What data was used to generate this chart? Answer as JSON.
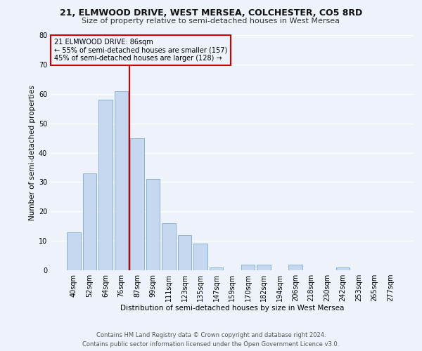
{
  "title1": "21, ELMWOOD DRIVE, WEST MERSEA, COLCHESTER, CO5 8RD",
  "title2": "Size of property relative to semi-detached houses in West Mersea",
  "xlabel": "Distribution of semi-detached houses by size in West Mersea",
  "ylabel": "Number of semi-detached properties",
  "footnote1": "Contains HM Land Registry data © Crown copyright and database right 2024.",
  "footnote2": "Contains public sector information licensed under the Open Government Licence v3.0.",
  "bar_labels": [
    "40sqm",
    "52sqm",
    "64sqm",
    "76sqm",
    "87sqm",
    "99sqm",
    "111sqm",
    "123sqm",
    "135sqm",
    "147sqm",
    "159sqm",
    "170sqm",
    "182sqm",
    "194sqm",
    "206sqm",
    "218sqm",
    "230sqm",
    "242sqm",
    "253sqm",
    "265sqm",
    "277sqm"
  ],
  "bar_values": [
    13,
    33,
    58,
    61,
    45,
    31,
    16,
    12,
    9,
    1,
    0,
    2,
    2,
    0,
    2,
    0,
    0,
    1,
    0,
    0,
    0
  ],
  "bar_color": "#c5d8f0",
  "bar_edge_color": "#7aaad0",
  "vline_x_pos": 4.5,
  "annotation_title": "21 ELMWOOD DRIVE: 86sqm",
  "annotation_line1": "← 55% of semi-detached houses are smaller (157)",
  "annotation_line2": "45% of semi-detached houses are larger (128) →",
  "vline_color": "#cc0000",
  "box_edge_color": "#cc0000",
  "ylim": [
    0,
    80
  ],
  "yticks": [
    0,
    10,
    20,
    30,
    40,
    50,
    60,
    70,
    80
  ],
  "bg_color": "#eef2fa",
  "grid_color": "#ffffff",
  "title1_fontsize": 9.0,
  "title2_fontsize": 8.0,
  "ylabel_fontsize": 7.5,
  "xlabel_fontsize": 7.5,
  "tick_fontsize": 7.0,
  "annot_fontsize": 7.0,
  "footnote_fontsize": 6.0
}
